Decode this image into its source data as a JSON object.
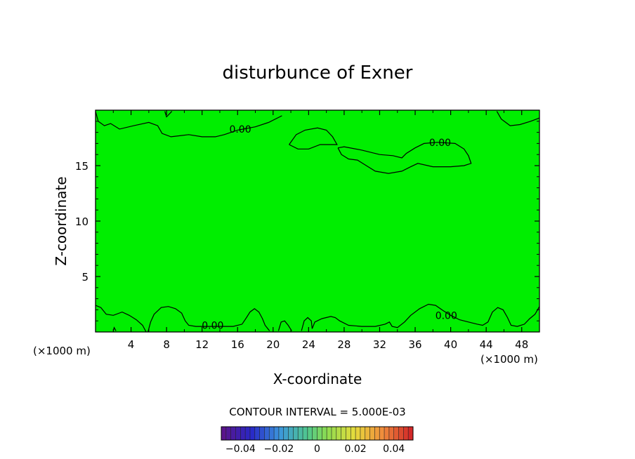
{
  "chart_data": {
    "type": "heatmap",
    "title": "disturbunce of Exner",
    "xlabel": "X-coordinate",
    "ylabel": "Z-coordinate",
    "x_unit_left": "(×1000 m)",
    "x_unit_right": "(×1000 m)",
    "xlim": [
      0,
      50
    ],
    "ylim": [
      0,
      20
    ],
    "xticks": [
      4,
      8,
      12,
      16,
      20,
      24,
      28,
      32,
      36,
      40,
      44,
      48
    ],
    "yticks": [
      5,
      10,
      15
    ],
    "grid": false,
    "field_color": "#00ee00",
    "contour_labels": [
      {
        "text": "0.00",
        "x": 16.3,
        "y": 18.3
      },
      {
        "text": "0.00",
        "x": 38.8,
        "y": 17.1
      },
      {
        "text": "0.00",
        "x": 13.2,
        "y": 0.6
      },
      {
        "text": "0.00",
        "x": 39.5,
        "y": 1.5
      }
    ],
    "contours": [
      {
        "level": 0.0,
        "points": [
          [
            0.0,
            19.9
          ],
          [
            0.3,
            19.0
          ],
          [
            1.0,
            18.6
          ],
          [
            1.7,
            18.8
          ],
          [
            2.7,
            18.3
          ],
          [
            4.3,
            18.6
          ],
          [
            6.0,
            18.9
          ],
          [
            7.0,
            18.6
          ],
          [
            7.5,
            17.9
          ],
          [
            8.5,
            17.6
          ],
          [
            10.5,
            17.8
          ],
          [
            12.0,
            17.6
          ],
          [
            13.5,
            17.6
          ],
          [
            14.5,
            17.8
          ],
          [
            16.0,
            18.2
          ],
          [
            18.0,
            18.5
          ],
          [
            19.5,
            18.9
          ],
          [
            21.0,
            19.5
          ]
        ]
      },
      {
        "level": 0.0,
        "points": [
          [
            7.8,
            19.9
          ],
          [
            8.0,
            19.4
          ],
          [
            8.6,
            19.9
          ]
        ]
      },
      {
        "level": 0.0,
        "points": [
          [
            21.8,
            16.9
          ],
          [
            22.6,
            17.8
          ],
          [
            23.6,
            18.2
          ],
          [
            25.0,
            18.4
          ],
          [
            26.0,
            18.2
          ],
          [
            26.7,
            17.6
          ],
          [
            27.2,
            16.9
          ],
          [
            25.3,
            16.9
          ],
          [
            24.0,
            16.5
          ],
          [
            22.8,
            16.5
          ],
          [
            21.8,
            16.9
          ]
        ]
      },
      {
        "level": 0.0,
        "points": [
          [
            27.3,
            16.6
          ],
          [
            28.0,
            16.7
          ],
          [
            30.0,
            16.4
          ],
          [
            32.0,
            16.0
          ],
          [
            33.5,
            15.9
          ],
          [
            34.5,
            15.7
          ],
          [
            35.0,
            16.1
          ],
          [
            36.0,
            16.6
          ],
          [
            37.0,
            17.0
          ],
          [
            38.5,
            17.1
          ],
          [
            40.5,
            17.0
          ],
          [
            41.5,
            16.5
          ],
          [
            42.0,
            15.9
          ],
          [
            42.3,
            15.2
          ],
          [
            41.5,
            15.0
          ],
          [
            40.0,
            14.9
          ],
          [
            38.0,
            14.9
          ],
          [
            36.3,
            15.2
          ],
          [
            35.5,
            14.9
          ],
          [
            34.5,
            14.5
          ],
          [
            33.0,
            14.3
          ],
          [
            31.5,
            14.5
          ],
          [
            30.5,
            15.0
          ],
          [
            29.5,
            15.5
          ],
          [
            28.5,
            15.6
          ],
          [
            27.7,
            16.0
          ],
          [
            27.3,
            16.6
          ]
        ]
      },
      {
        "level": 0.0,
        "points": [
          [
            45.2,
            19.9
          ],
          [
            45.7,
            19.2
          ],
          [
            46.7,
            18.6
          ],
          [
            47.8,
            18.7
          ],
          [
            49.0,
            19.0
          ],
          [
            50.0,
            19.3
          ]
        ]
      },
      {
        "level": 0.0,
        "points": [
          [
            0.0,
            2.4
          ],
          [
            0.6,
            2.2
          ],
          [
            1.2,
            1.6
          ],
          [
            2.0,
            1.5
          ],
          [
            3.0,
            1.8
          ],
          [
            3.8,
            1.5
          ],
          [
            4.6,
            1.1
          ],
          [
            5.3,
            0.6
          ],
          [
            5.7,
            0.0
          ]
        ]
      },
      {
        "level": 0.0,
        "points": [
          [
            5.9,
            0.0
          ],
          [
            6.2,
            0.9
          ],
          [
            6.6,
            1.6
          ],
          [
            7.4,
            2.2
          ],
          [
            8.2,
            2.3
          ],
          [
            9.0,
            2.1
          ],
          [
            9.7,
            1.7
          ],
          [
            10.1,
            1.0
          ],
          [
            10.5,
            0.6
          ],
          [
            11.3,
            0.5
          ],
          [
            12.5,
            0.5
          ],
          [
            14.0,
            0.5
          ],
          [
            15.5,
            0.5
          ],
          [
            16.5,
            0.7
          ],
          [
            17.0,
            1.3
          ],
          [
            17.4,
            1.8
          ],
          [
            17.9,
            2.1
          ],
          [
            18.4,
            1.8
          ],
          [
            18.8,
            1.2
          ],
          [
            19.1,
            0.6
          ],
          [
            19.6,
            0.1
          ]
        ]
      },
      {
        "level": 0.0,
        "points": [
          [
            20.6,
            0.1
          ],
          [
            20.9,
            0.9
          ],
          [
            21.3,
            1.0
          ],
          [
            21.7,
            0.6
          ],
          [
            22.1,
            0.1
          ]
        ]
      },
      {
        "level": 0.0,
        "points": [
          [
            23.2,
            0.1
          ],
          [
            23.5,
            1.0
          ],
          [
            23.9,
            1.3
          ],
          [
            24.3,
            1.0
          ],
          [
            24.4,
            0.3
          ],
          [
            24.7,
            0.9
          ],
          [
            25.5,
            1.2
          ],
          [
            26.5,
            1.4
          ],
          [
            27.0,
            1.3
          ],
          [
            27.5,
            1.0
          ],
          [
            28.5,
            0.6
          ],
          [
            30.0,
            0.5
          ],
          [
            31.5,
            0.5
          ],
          [
            32.6,
            0.7
          ],
          [
            33.1,
            0.9
          ],
          [
            33.4,
            0.5
          ],
          [
            34.0,
            0.4
          ],
          [
            34.8,
            0.9
          ],
          [
            35.5,
            1.5
          ],
          [
            36.5,
            2.1
          ],
          [
            37.5,
            2.5
          ],
          [
            38.3,
            2.4
          ],
          [
            39.2,
            1.9
          ],
          [
            40.0,
            1.5
          ],
          [
            41.0,
            1.1
          ],
          [
            42.0,
            0.9
          ],
          [
            43.0,
            0.7
          ],
          [
            43.6,
            0.6
          ],
          [
            44.2,
            0.9
          ],
          [
            44.7,
            1.8
          ],
          [
            45.3,
            2.2
          ],
          [
            45.9,
            2.0
          ],
          [
            46.4,
            1.3
          ],
          [
            46.8,
            0.6
          ],
          [
            47.5,
            0.5
          ],
          [
            48.3,
            0.7
          ],
          [
            48.9,
            1.2
          ],
          [
            49.5,
            1.6
          ],
          [
            50.0,
            2.3
          ]
        ]
      },
      {
        "level": 0.0,
        "points": [
          [
            2.0,
            0.1
          ],
          [
            2.1,
            0.4
          ],
          [
            2.3,
            0.1
          ]
        ]
      }
    ]
  },
  "footer": {
    "contour_interval": "CONTOUR INTERVAL = 5.000E-03",
    "colorbar_labels": [
      "−0.04",
      "−0.02",
      "0",
      "0.02",
      "0.04"
    ],
    "colorbar_range": [
      -0.05,
      0.05
    ]
  }
}
